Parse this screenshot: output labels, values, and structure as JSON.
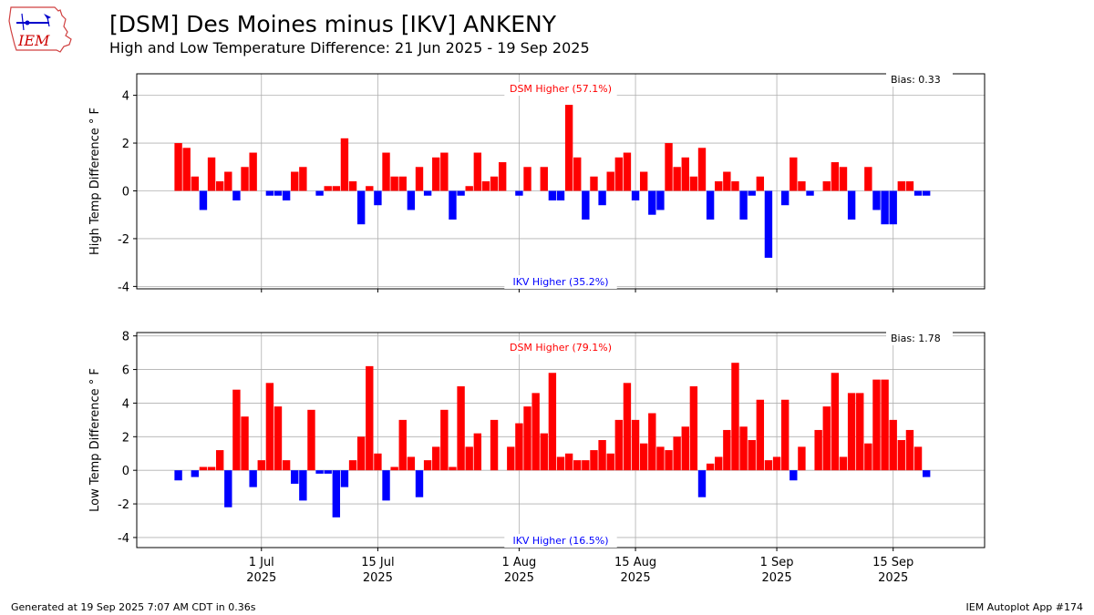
{
  "header": {
    "title": "[DSM] Des Moines minus [IKV] ANKENY",
    "subtitle": "High and Low Temperature Difference: 21 Jun 2025 - 19 Sep 2025",
    "logo_text": "IEM"
  },
  "footer": {
    "generated": "Generated at 19 Sep 2025 7:07 AM CDT in 0.36s",
    "app": "IEM Autoplot App #174"
  },
  "colors": {
    "positive": "#ff0000",
    "negative": "#0000ff",
    "grid": "#b0b0b0"
  },
  "chart_data": [
    {
      "type": "bar",
      "ylabel": "High Temp Difference $^\\circ$F",
      "ylabel_display": "High Temp Difference ° F",
      "ylim": [
        -4.1,
        4.9
      ],
      "yticks": [
        -4,
        -2,
        0,
        2,
        4
      ],
      "x_start": "2025-06-21",
      "x_range": [
        "2025-06-16",
        "2025-09-26"
      ],
      "xticks": [
        {
          "date": "2025-07-01",
          "label1": "1 Jul",
          "label2": "2025"
        },
        {
          "date": "2025-07-15",
          "label1": "15 Jul",
          "label2": "2025"
        },
        {
          "date": "2025-08-01",
          "label1": "1 Aug",
          "label2": "2025"
        },
        {
          "date": "2025-08-15",
          "label1": "15 Aug",
          "label2": "2025"
        },
        {
          "date": "2025-09-01",
          "label1": "1 Sep",
          "label2": "2025"
        },
        {
          "date": "2025-09-15",
          "label1": "15 Sep",
          "label2": "2025"
        }
      ],
      "grid": true,
      "annotations": {
        "top": "DSM Higher (57.1%)",
        "bottom": "IKV Higher (35.2%)",
        "bias": "Bias: 0.33"
      },
      "values": [
        2.0,
        1.8,
        0.6,
        -0.8,
        1.4,
        0.4,
        0.8,
        -0.4,
        1.0,
        1.6,
        0,
        -0.2,
        -0.2,
        -0.4,
        0.8,
        1.0,
        0,
        -0.2,
        0.2,
        0.2,
        2.2,
        0.4,
        -1.4,
        0.2,
        -0.6,
        1.6,
        0.6,
        0.6,
        -0.8,
        1.0,
        -0.2,
        1.4,
        1.6,
        -1.2,
        -0.2,
        0.2,
        1.6,
        0.4,
        0.6,
        1.2,
        0,
        -0.2,
        1.0,
        0,
        1.0,
        -0.4,
        -0.4,
        3.6,
        1.4,
        -1.2,
        0.6,
        -0.6,
        0.8,
        1.4,
        1.6,
        -0.4,
        0.8,
        -1.0,
        -0.8,
        2.0,
        1.0,
        1.4,
        0.6,
        1.8,
        -1.2,
        0.4,
        0.8,
        0.4,
        -1.2,
        -0.2,
        0.6,
        -2.8,
        0,
        -0.6,
        1.4,
        0.4,
        -0.2,
        0,
        0.4,
        1.2,
        1.0,
        -1.2,
        0,
        1.0,
        -0.8,
        -1.4,
        -1.4,
        0.4,
        0.4,
        -0.2,
        -0.2
      ]
    },
    {
      "type": "bar",
      "ylabel": "Low Temp Difference $^\\circ$F",
      "ylabel_display": "Low Temp Difference ° F",
      "ylim": [
        -4.6,
        8.2
      ],
      "yticks": [
        -4,
        -2,
        0,
        2,
        4,
        6,
        8
      ],
      "x_start": "2025-06-21",
      "x_range": [
        "2025-06-16",
        "2025-09-26"
      ],
      "xticks": [
        {
          "date": "2025-07-01",
          "label1": "1 Jul",
          "label2": "2025"
        },
        {
          "date": "2025-07-15",
          "label1": "15 Jul",
          "label2": "2025"
        },
        {
          "date": "2025-08-01",
          "label1": "1 Aug",
          "label2": "2025"
        },
        {
          "date": "2025-08-15",
          "label1": "15 Aug",
          "label2": "2025"
        },
        {
          "date": "2025-09-01",
          "label1": "1 Sep",
          "label2": "2025"
        },
        {
          "date": "2025-09-15",
          "label1": "15 Sep",
          "label2": "2025"
        }
      ],
      "grid": true,
      "annotations": {
        "top": "DSM Higher (79.1%)",
        "bottom": "IKV Higher (16.5%)",
        "bias": "Bias: 1.78"
      },
      "values": [
        -0.6,
        0,
        -0.4,
        0.2,
        0.2,
        1.2,
        -2.2,
        4.8,
        3.2,
        -1.0,
        0.6,
        5.2,
        3.8,
        0.6,
        -0.8,
        -1.8,
        3.6,
        -0.2,
        -0.2,
        -2.8,
        -1.0,
        0.6,
        2.0,
        6.2,
        1.0,
        -1.8,
        0.2,
        3.0,
        0.8,
        -1.6,
        0.6,
        1.4,
        3.6,
        0.2,
        5.0,
        1.4,
        2.2,
        0,
        3.0,
        0,
        1.4,
        2.8,
        3.8,
        4.6,
        2.2,
        5.8,
        0.8,
        1.0,
        0.6,
        0.6,
        1.2,
        1.8,
        1.0,
        3.0,
        5.2,
        3.0,
        1.6,
        3.4,
        1.4,
        1.2,
        2.0,
        2.6,
        5.0,
        -1.6,
        0.4,
        0.8,
        2.4,
        6.4,
        2.6,
        1.8,
        4.2,
        0.6,
        0.8,
        4.2,
        -0.6,
        1.4,
        0,
        2.4,
        3.8,
        5.8,
        0.8,
        4.6,
        4.6,
        1.6,
        5.4,
        5.4,
        3.0,
        1.8,
        2.4,
        1.4,
        -0.4
      ]
    }
  ]
}
